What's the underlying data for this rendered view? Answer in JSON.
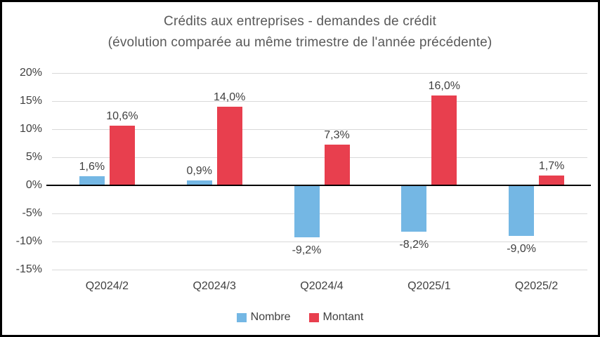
{
  "title": {
    "line1": "Crédits aux entreprises - demandes de crédit",
    "line2": "(évolution comparée au même trimestre de l'année précédente)"
  },
  "chart_data": {
    "type": "bar",
    "title": "Crédits aux entreprises - demandes de crédit (évolution comparée au même trimestre de l'année précédente)",
    "categories": [
      "Q2024/2",
      "Q2024/3",
      "Q2024/4",
      "Q2025/1",
      "Q2025/2"
    ],
    "series": [
      {
        "name": "Nombre",
        "color": "#74B7E4",
        "values": [
          1.6,
          0.9,
          -9.2,
          -8.2,
          -9.0
        ],
        "labels": [
          "1,6%",
          "0,9%",
          "-9,2%",
          "-8,2%",
          "-9,0%"
        ]
      },
      {
        "name": "Montant",
        "color": "#E83F4E",
        "values": [
          10.6,
          14.0,
          7.3,
          16.0,
          1.7
        ],
        "labels": [
          "10,6%",
          "14,0%",
          "7,3%",
          "16,0%",
          "1,7%"
        ]
      }
    ],
    "y_ticks": [
      {
        "label": "20%",
        "value": 20
      },
      {
        "label": "15%",
        "value": 15
      },
      {
        "label": "10%",
        "value": 10
      },
      {
        "label": "5%",
        "value": 5
      },
      {
        "label": "0%",
        "value": 0
      },
      {
        "label": "-5%",
        "value": -5
      },
      {
        "label": "-10%",
        "value": -10
      },
      {
        "label": "-15%",
        "value": -15
      }
    ],
    "ylim": [
      -15,
      20
    ],
    "grid": true,
    "legend_position": "bottom",
    "colors": {
      "grid": "#d9d9d9",
      "zero_line": "#000000",
      "title_text": "#595959",
      "label_text": "#404040"
    }
  }
}
